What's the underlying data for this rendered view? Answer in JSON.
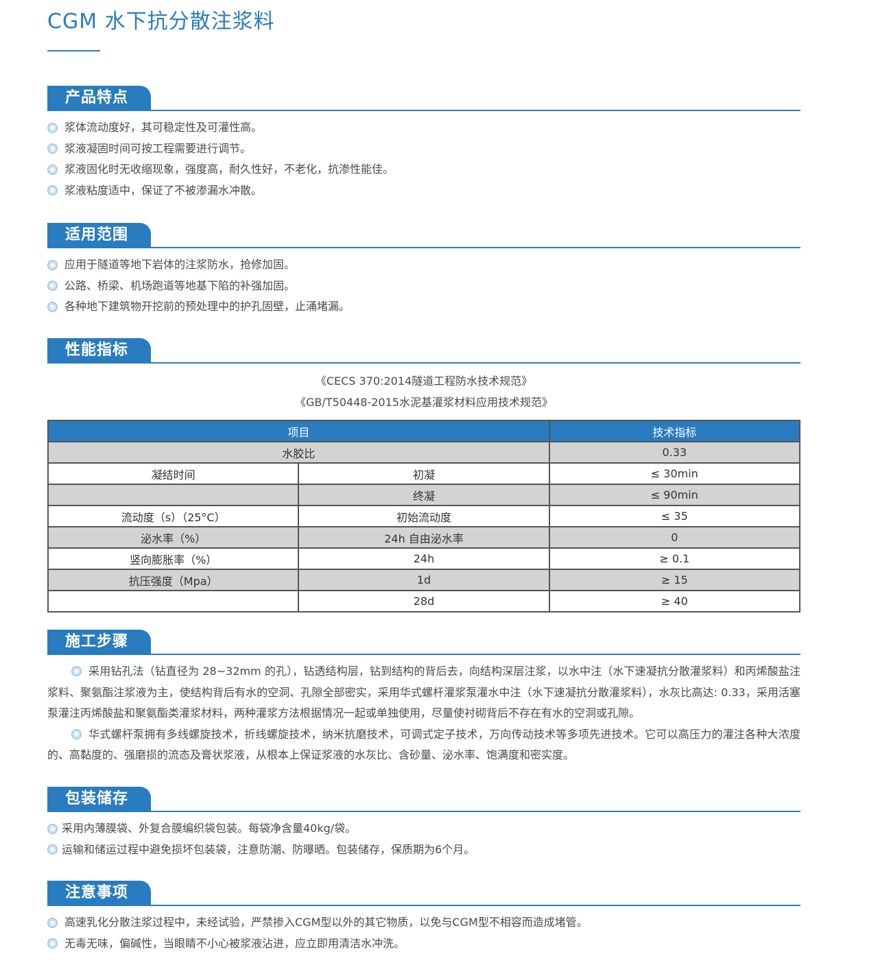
{
  "title": "CGM 水下抗分散注浆料",
  "sections": {
    "features": {
      "heading": "产品特点",
      "items": [
        "浆体流动度好，其可稳定性及可灌性高。",
        "浆液凝固时间可按工程需要进行调节。",
        "浆液固化时无收缩现象，强度高，耐久性好，不老化，抗渗性能佳。",
        "浆液粘度适中，保证了不被渗漏水冲散。"
      ]
    },
    "scope": {
      "heading": "适用范围",
      "items": [
        "应用于隧道等地下岩体的注浆防水，抢修加固。",
        "公路、桥梁、机场跑道等地基下陷的补强加固。",
        "各种地下建筑物开挖前的预处理中的护孔固壁，止涌堵漏。"
      ]
    },
    "performance": {
      "heading": "性能指标",
      "standards": [
        "《CECS 370:2014隧道工程防水技术规范》",
        "《GB/T50448-2015水泥基灌浆材料应用技术规范》"
      ],
      "table": {
        "headers": [
          "项目",
          "技术指标"
        ],
        "rows": [
          {
            "item": "水胶比",
            "sub": "",
            "value": "0.33"
          },
          {
            "item": "凝结时间",
            "sub": "初凝",
            "value": "≤ 30min"
          },
          {
            "item": "",
            "sub": "终凝",
            "value": "≤ 90min"
          },
          {
            "item": "流动度（s）（25°C）",
            "sub": "初始流动度",
            "value": "≤ 35"
          },
          {
            "item": "泌水率（%）",
            "sub": "24h 自由泌水率",
            "value": "0"
          },
          {
            "item": "竖向膨胀率（%）",
            "sub": "24h",
            "value": "≥ 0.1"
          },
          {
            "item": "抗压强度（Mpa）",
            "sub": "1d",
            "value": "≥ 15"
          },
          {
            "item": "",
            "sub": "28d",
            "value": "≥ 40"
          }
        ]
      }
    },
    "construction": {
      "heading": "施工步骤",
      "paragraphs": [
        "采用钻孔法（钻直径为 28~32mm 的孔），钻透结构层，钻到结构的背后去，向结构深层注浆，以水中注（水下速凝抗分散灌浆料）和丙烯酸盐注浆料、聚氨酯注浆液为主，使结构背后有水的空洞、孔隙全部密实，采用华式螺杆灌浆泵灌水中注（水下速凝抗分散灌浆料），水灰比高达: 0.33，采用活塞泵灌注丙烯酸盐和聚氨酯类灌浆材料，两种灌浆方法根据情况一起或单独使用，尽量使衬砌背后不存在有水的空洞或孔隙。",
        "华式螺杆泵拥有多线螺旋技术，折线螺旋技术，纳米抗磨技术，可调式定子技术，万向传动技术等多项先进技术。它可以高压力的灌注各种大浓度的、高黏度的、强磨损的流态及膏状浆液，从根本上保证浆液的水灰比、含砂量、泌水率、饱满度和密实度。"
      ]
    },
    "packaging": {
      "heading": "包装储存",
      "items": [
        "采用内薄膜袋、外复合膜编织袋包装。每袋净含量40kg/袋。",
        "运输和储运过程中避免损坏包装袋，注意防潮、防曝晒。包装储存，保质期为6个月。"
      ]
    },
    "notes": {
      "heading": "注意事项",
      "items": [
        "高速乳化分散注浆过程中，未经试验，严禁掺入CGM型以外的其它物质，以免与CGM型不相容而造成堵管。",
        "无毒无味，偏碱性，当眼睛不小心被浆液沾进，应立即用清洁水冲洗。"
      ]
    }
  },
  "colors": {
    "accent": "#2a7cc0",
    "row_gray": "#d3d3d3"
  },
  "icons": {
    "bullet": "double-circle-bullet-icon"
  }
}
